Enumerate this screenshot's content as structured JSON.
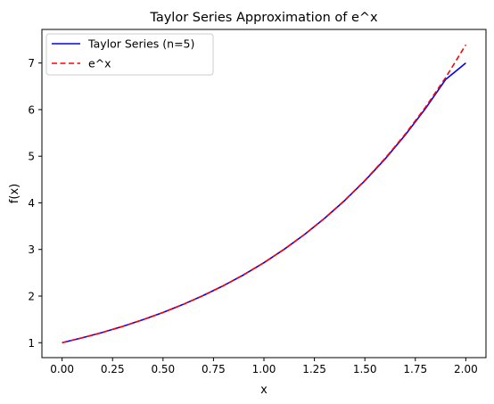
{
  "chart_data": {
    "type": "line",
    "title": "Taylor Series Approximation of e^x",
    "xlabel": "x",
    "ylabel": "f(x)",
    "xlim": [
      -0.1,
      2.1
    ],
    "ylim": [
      0.68,
      7.72
    ],
    "grid": false,
    "legend_position": "top-left",
    "x_ticks": [
      {
        "value": 0.0,
        "label": "0.00"
      },
      {
        "value": 0.25,
        "label": "0.25"
      },
      {
        "value": 0.5,
        "label": "0.50"
      },
      {
        "value": 0.75,
        "label": "0.75"
      },
      {
        "value": 1.0,
        "label": "1.00"
      },
      {
        "value": 1.25,
        "label": "1.25"
      },
      {
        "value": 1.5,
        "label": "1.50"
      },
      {
        "value": 1.75,
        "label": "1.75"
      },
      {
        "value": 2.0,
        "label": "2.00"
      }
    ],
    "y_ticks": [
      {
        "value": 1,
        "label": "1"
      },
      {
        "value": 2,
        "label": "2"
      },
      {
        "value": 3,
        "label": "3"
      },
      {
        "value": 4,
        "label": "4"
      },
      {
        "value": 5,
        "label": "5"
      },
      {
        "value": 6,
        "label": "6"
      },
      {
        "value": 7,
        "label": "7"
      }
    ],
    "series": [
      {
        "name": "Taylor Series (n=5)",
        "color": "#0000ff",
        "style": "solid",
        "x": [
          0.0,
          0.1,
          0.2,
          0.3,
          0.4,
          0.5,
          0.6,
          0.7,
          0.8,
          0.9,
          1.0,
          1.1,
          1.2,
          1.3,
          1.4,
          1.5,
          1.6,
          1.7,
          1.8,
          1.9,
          2.0
        ],
        "y": [
          1.0,
          1.105,
          1.221,
          1.35,
          1.492,
          1.649,
          1.822,
          2.014,
          2.225,
          2.457,
          2.717,
          3.003,
          3.318,
          3.666,
          4.05,
          4.474,
          4.94,
          5.455,
          6.022,
          6.645,
          7.0
        ]
      },
      {
        "name": "e^x",
        "color": "#ff0000",
        "style": "dashed",
        "x": [
          0.0,
          0.1,
          0.2,
          0.3,
          0.4,
          0.5,
          0.6,
          0.7,
          0.8,
          0.9,
          1.0,
          1.1,
          1.2,
          1.3,
          1.4,
          1.5,
          1.6,
          1.7,
          1.8,
          1.9,
          2.0
        ],
        "y": [
          1.0,
          1.105,
          1.221,
          1.35,
          1.492,
          1.649,
          1.822,
          2.014,
          2.226,
          2.46,
          2.718,
          3.004,
          3.32,
          3.669,
          4.055,
          4.482,
          4.953,
          5.474,
          6.05,
          6.686,
          7.389
        ]
      }
    ]
  }
}
